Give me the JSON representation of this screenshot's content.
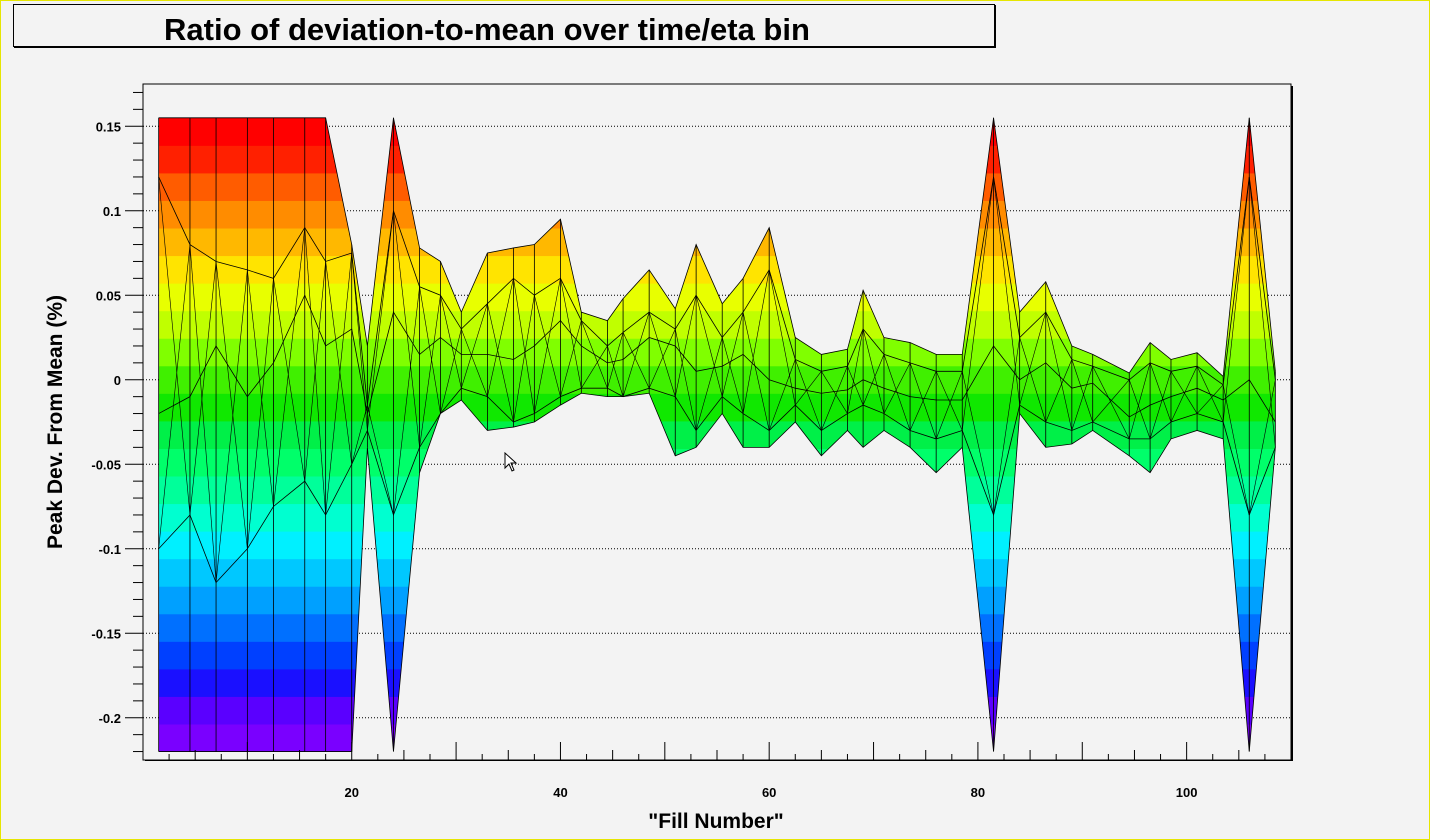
{
  "chart_data": {
    "type": "area",
    "title": "Ratio of deviation-to-mean over time/eta bin",
    "xlabel": "\"Fill Number\"",
    "ylabel": "Peak Dev. From Mean (%)",
    "xlim": [
      0,
      110
    ],
    "ylim": [
      -0.225,
      0.175
    ],
    "clip_range": [
      -0.22,
      0.155
    ],
    "x_ticks": [
      20,
      40,
      60,
      80,
      100
    ],
    "y_ticks": [
      0.15,
      0.1,
      0.05,
      0,
      -0.05,
      -0.1,
      -0.15,
      -0.2
    ],
    "x_tick_labels": [
      "20",
      "40",
      "60",
      "80",
      "100"
    ],
    "y_tick_labels": [
      "0.15",
      "0.1",
      "0.05",
      "0",
      "-0.05",
      "-0.1",
      "-0.15",
      "-0.2"
    ],
    "grid": "horizontal dotted",
    "colormap": "rainbow (blue low, green zero, red high)",
    "x": [
      1.5,
      4.5,
      7,
      10,
      12.5,
      15.5,
      17.5,
      20,
      21.5,
      24,
      26.5,
      28.5,
      30.5,
      33,
      35.5,
      37.5,
      40,
      42,
      44.5,
      46,
      48.5,
      51,
      53,
      55.5,
      57.5,
      60,
      62.5,
      65,
      67.5,
      69,
      71,
      73.5,
      76,
      78.5,
      81.5,
      84,
      86.5,
      89,
      91,
      94.5,
      96.5,
      98.5,
      101,
      103.5,
      106,
      108.5
    ],
    "series_max": [
      0.155,
      0.155,
      0.155,
      0.155,
      0.155,
      0.155,
      0.155,
      0.08,
      0.02,
      0.155,
      0.078,
      0.07,
      0.04,
      0.075,
      0.078,
      0.08,
      0.095,
      0.04,
      0.035,
      0.048,
      0.065,
      0.042,
      0.08,
      0.045,
      0.06,
      0.09,
      0.025,
      0.015,
      0.018,
      0.053,
      0.025,
      0.022,
      0.015,
      0.015,
      0.155,
      0.04,
      0.058,
      0.02,
      0.015,
      0.004,
      0.022,
      0.012,
      0.016,
      0.002,
      0.155,
      0.005
    ],
    "series_high": [
      0.12,
      0.08,
      0.07,
      0.065,
      0.06,
      0.09,
      0.07,
      0.075,
      -0.015,
      0.1,
      0.055,
      0.05,
      0.03,
      0.045,
      0.06,
      0.05,
      0.06,
      0.035,
      0.02,
      0.028,
      0.04,
      0.03,
      0.05,
      0.025,
      0.04,
      0.065,
      0.012,
      0.005,
      0.008,
      0.03,
      0.015,
      0.01,
      0.005,
      0.005,
      0.12,
      0.025,
      0.04,
      0.012,
      0.008,
      0.0,
      0.01,
      0.005,
      0.008,
      -0.003,
      0.12,
      0.0
    ],
    "series_mid": [
      -0.02,
      -0.01,
      0.02,
      -0.01,
      0.01,
      0.05,
      0.02,
      0.03,
      -0.02,
      0.04,
      0.015,
      0.025,
      0.015,
      0.015,
      0.012,
      0.02,
      0.035,
      0.02,
      0.01,
      0.012,
      0.025,
      0.02,
      0.005,
      0.008,
      0.015,
      0.0,
      -0.005,
      -0.008,
      -0.006,
      0.0,
      -0.005,
      -0.01,
      -0.012,
      -0.012,
      0.02,
      0.0,
      0.01,
      -0.005,
      -0.002,
      -0.022,
      -0.015,
      -0.01,
      -0.005,
      -0.012,
      0.0,
      -0.025
    ],
    "series_low": [
      -0.1,
      -0.08,
      -0.12,
      -0.1,
      -0.075,
      -0.06,
      -0.08,
      -0.05,
      -0.03,
      -0.08,
      -0.04,
      -0.02,
      -0.005,
      -0.01,
      -0.025,
      -0.02,
      -0.01,
      -0.005,
      -0.005,
      -0.01,
      -0.005,
      -0.01,
      -0.03,
      -0.01,
      -0.02,
      -0.03,
      -0.015,
      -0.03,
      -0.02,
      -0.015,
      -0.02,
      -0.03,
      -0.035,
      -0.03,
      -0.08,
      -0.015,
      -0.025,
      -0.03,
      -0.025,
      -0.035,
      -0.035,
      -0.025,
      -0.02,
      -0.025,
      -0.08,
      -0.04
    ],
    "series_min": [
      -0.22,
      -0.22,
      -0.22,
      -0.22,
      -0.22,
      -0.22,
      -0.22,
      -0.22,
      -0.04,
      -0.22,
      -0.055,
      -0.02,
      -0.012,
      -0.03,
      -0.028,
      -0.025,
      -0.015,
      -0.008,
      -0.01,
      -0.01,
      -0.008,
      -0.045,
      -0.04,
      -0.02,
      -0.04,
      -0.04,
      -0.025,
      -0.045,
      -0.03,
      -0.04,
      -0.03,
      -0.04,
      -0.055,
      -0.04,
      -0.22,
      -0.02,
      -0.04,
      -0.038,
      -0.03,
      -0.045,
      -0.055,
      -0.035,
      -0.03,
      -0.035,
      -0.22,
      -0.04
    ]
  }
}
